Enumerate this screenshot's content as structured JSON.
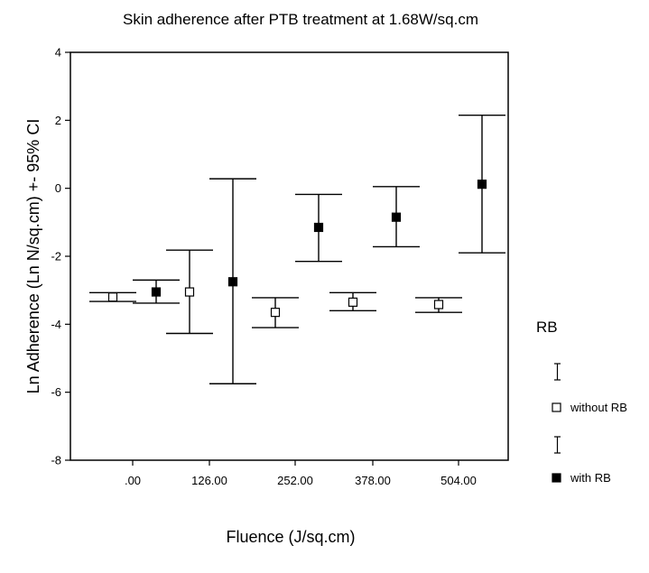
{
  "chart_data": {
    "type": "scatter",
    "title": "Skin adherence after PTB treatment at 1.68W/sq.cm",
    "xlabel": "Fluence (J/sq.cm)",
    "ylabel": "Ln Adherence (Ln N/sq.cm) +- 95% CI",
    "categories": [
      ".00",
      "126.00",
      "252.00",
      "378.00",
      "504.00"
    ],
    "ylim": [
      -8,
      4
    ],
    "yticks": [
      "4",
      "2",
      "0",
      "-2",
      "-4",
      "-6",
      "-8"
    ],
    "legend": {
      "title": "RB",
      "position": "right"
    },
    "series": [
      {
        "name": "without RB",
        "marker": "open-square",
        "color": "#000000",
        "values": [
          -3.2,
          -3.05,
          -3.65,
          -3.35,
          -3.42
        ],
        "ci_low": [
          -3.33,
          -4.27,
          -4.1,
          -3.6,
          -3.65
        ],
        "ci_high": [
          -3.07,
          -1.82,
          -3.22,
          -3.07,
          -3.22
        ]
      },
      {
        "name": "with RB",
        "marker": "filled-square",
        "color": "#000000",
        "values": [
          -3.05,
          -2.75,
          -1.15,
          -0.85,
          0.12
        ],
        "ci_low": [
          -3.38,
          -5.75,
          -2.15,
          -1.72,
          -1.9
        ],
        "ci_high": [
          -2.7,
          0.28,
          -0.18,
          0.05,
          2.15
        ]
      }
    ]
  }
}
